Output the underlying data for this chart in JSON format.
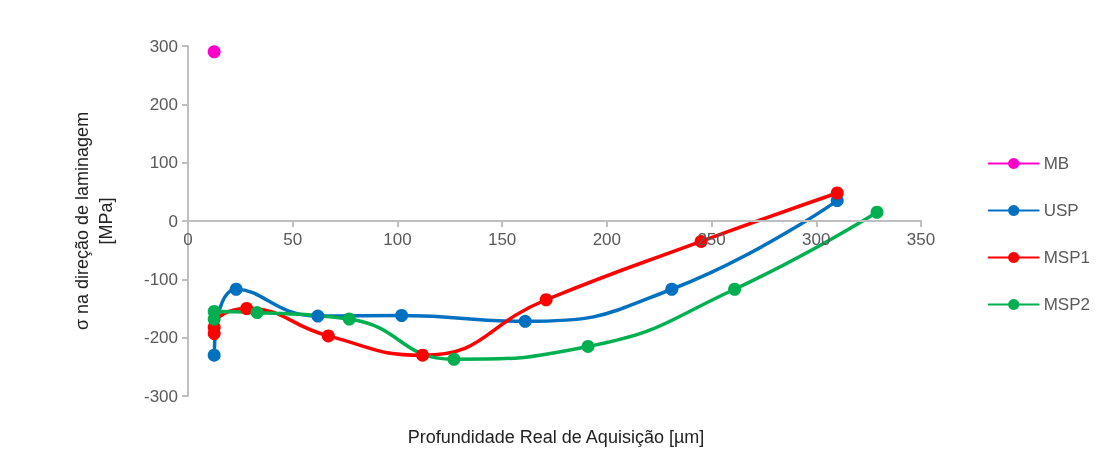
{
  "chart_data": {
    "type": "line",
    "xlabel": "Profundidade Real de Aquisição [µm]",
    "ylabel": "σ na direção de laminagem\n[MPa]",
    "xlim": [
      0,
      350
    ],
    "xticks": [
      0,
      50,
      100,
      150,
      200,
      250,
      300,
      350
    ],
    "ylim": [
      -300,
      300
    ],
    "yticks": [
      -300,
      -200,
      -100,
      0,
      100,
      200,
      300
    ],
    "grid": false,
    "legend": "right",
    "marker": "circle",
    "line_style": "solid",
    "series": [
      {
        "name": "MB",
        "color": "#ff00cc",
        "x": [
          12.5
        ],
        "values": [
          290
        ]
      },
      {
        "name": "USP",
        "color": "#0070c0",
        "x": [
          12.5,
          23,
          62,
          102,
          161,
          231,
          310
        ],
        "values": [
          -230,
          -117,
          -163,
          -162,
          -172,
          -117,
          35
        ]
      },
      {
        "name": "MSP1",
        "color": "#ff0000",
        "x": [
          12.5,
          12.5,
          28,
          67,
          112,
          171,
          245,
          310
        ],
        "values": [
          -193,
          -182,
          -150,
          -197,
          -230,
          -135,
          -35,
          48
        ]
      },
      {
        "name": "MSP2",
        "color": "#00b050",
        "x": [
          12.5,
          12.5,
          33,
          77,
          127,
          191,
          261,
          329
        ],
        "values": [
          -168,
          -155,
          -157,
          -168,
          -237,
          -215,
          -117,
          15
        ]
      }
    ]
  }
}
